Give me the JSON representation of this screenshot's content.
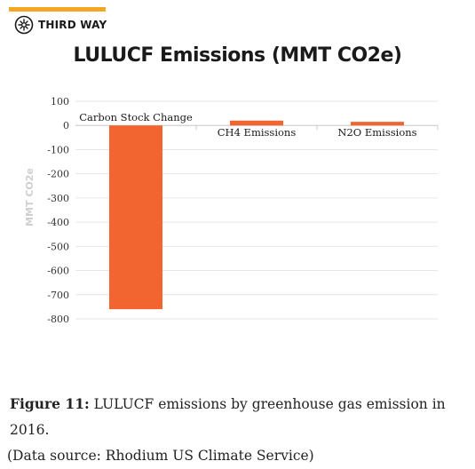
{
  "header": {
    "brand_name": "THIRD WAY",
    "brand_color": "#f5a623"
  },
  "chart_data": {
    "type": "bar",
    "title": "LULUCF Emissions (MMT CO2e)",
    "ylabel": "MMT CO2e",
    "xlabel": "",
    "categories": [
      "Carbon Stock Change",
      "CH4 Emissions",
      "N2O Emissions"
    ],
    "values": [
      -760,
      20,
      15
    ],
    "ylim": [
      -800,
      100
    ],
    "yticks": [
      100,
      0,
      -100,
      -200,
      -300,
      -400,
      -500,
      -600,
      -700,
      -800
    ],
    "grid": true,
    "bar_color": "#f26531"
  },
  "caption": {
    "label": "Figure 11:",
    "line1": " LULUCF emissions by greenhouse gas emission in 2016.",
    "line2": "(Data source: Rhodium US Climate Service)"
  }
}
